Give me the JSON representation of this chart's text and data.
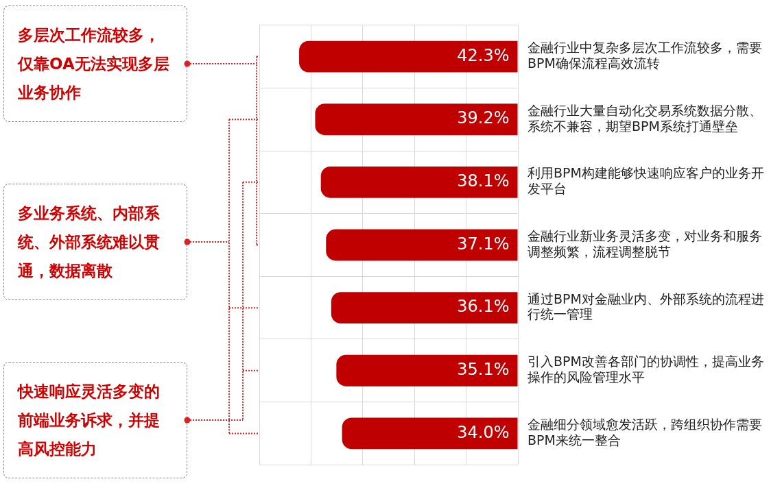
{
  "chart_data": {
    "type": "bar",
    "orientation": "horizontal",
    "categories": [
      "金融行业中复杂多层次工作流较多，需要BPM确保流程高效流转",
      "金融行业大量自动化交易系统数据分散、系统不兼容，期望BPM系统打通壁垒",
      "利用BPM构建能够快速响应客户的业务开发平台",
      "金融行业新业务灵活多变，对业务和服务调整频繁，流程调整脱节",
      "通过BPM对金融业内、外部系统的流程进行统一管理",
      "引入BPM改善各部门的协调性，提高业务操作的风险管理水平",
      "金融细分领域愈发活跃，跨组织协作需要BPM来统一整合"
    ],
    "values": [
      42.3,
      39.2,
      38.1,
      37.1,
      36.1,
      35.1,
      34.0
    ],
    "value_labels": [
      "42.3%",
      "39.2%",
      "38.1%",
      "37.1%",
      "36.1%",
      "35.1%",
      "34.0%"
    ],
    "color": "#c00000",
    "grid": true,
    "tick_labels": "y",
    "annotations": [
      "多层次工作流较多，仅靠OA无法实现多层业务协作",
      "多业务系统、内部系统、外部系统难以贯通，数据离散",
      "快速响应灵活多变的前端业务诉求，并提高风控能力"
    ]
  }
}
